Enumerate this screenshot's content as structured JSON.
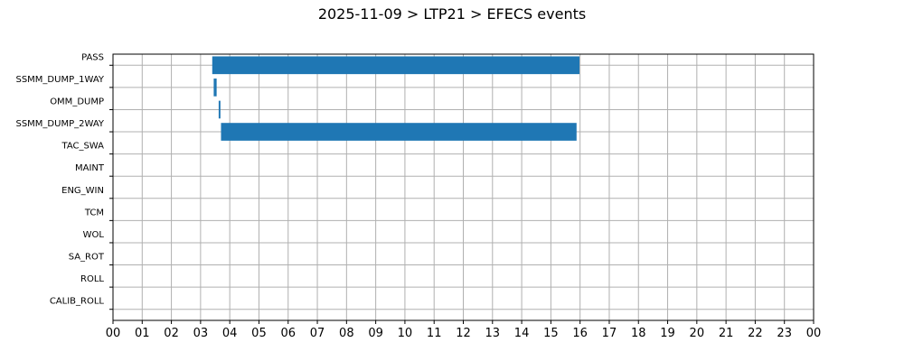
{
  "chart_data": {
    "type": "bar",
    "orientation": "horizontal",
    "title": "2025-11-09 > LTP21 > EFECS events",
    "xlabel": "",
    "ylabel": "",
    "xlim": [
      0,
      24
    ],
    "grid": true,
    "categories": [
      "PASS",
      "SSMM_DUMP_1WAY",
      "OMM_DUMP",
      "SSMM_DUMP_2WAY",
      "TAC_SWA",
      "MAINT",
      "ENG_WIN",
      "TCM",
      "WOL",
      "SA_ROT",
      "ROLL",
      "CALIB_ROLL"
    ],
    "xtick_labels": [
      "00",
      "01",
      "02",
      "03",
      "04",
      "05",
      "06",
      "07",
      "08",
      "09",
      "10",
      "11",
      "12",
      "13",
      "14",
      "15",
      "16",
      "17",
      "18",
      "19",
      "20",
      "21",
      "22",
      "23",
      "00"
    ],
    "series": [
      {
        "color": "#1f77b4",
        "intervals": [
          {
            "category": "PASS",
            "start": 3.4,
            "end": 15.98
          },
          {
            "category": "SSMM_DUMP_1WAY",
            "start": 3.45,
            "end": 3.55
          },
          {
            "category": "OMM_DUMP",
            "start": 3.62,
            "end": 3.68
          },
          {
            "category": "SSMM_DUMP_2WAY",
            "start": 3.7,
            "end": 15.88
          }
        ]
      }
    ]
  }
}
